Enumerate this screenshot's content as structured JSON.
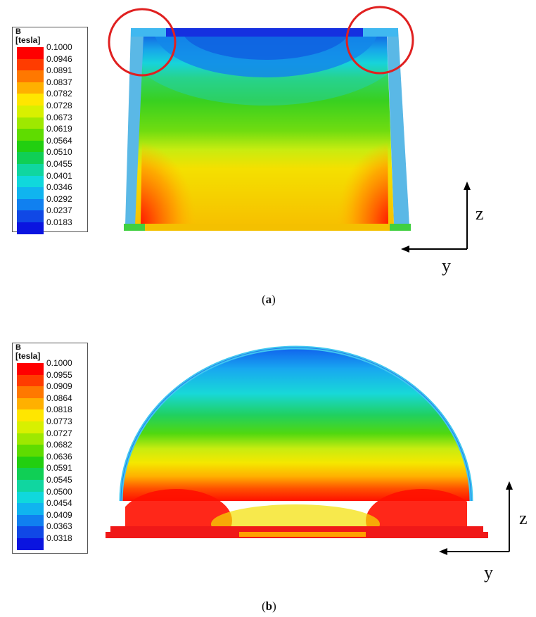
{
  "panel_a": {
    "legend": {
      "quantity": "B",
      "unit": "[tesla]",
      "ticks": [
        "0.1000",
        "0.0946",
        "0.0891",
        "0.0837",
        "0.0782",
        "0.0728",
        "0.0673",
        "0.0619",
        "0.0564",
        "0.0510",
        "0.0455",
        "0.0401",
        "0.0346",
        "0.0292",
        "0.0237",
        "0.0183"
      ],
      "colors": [
        "#ff0000",
        "#ff3c00",
        "#ff7800",
        "#ffb000",
        "#ffe600",
        "#d8f000",
        "#9ee800",
        "#5fdc00",
        "#22cf10",
        "#10cf55",
        "#10d6a0",
        "#10d8dc",
        "#10b4ef",
        "#1080f0",
        "#1048e6",
        "#0a14e0"
      ]
    },
    "axis": {
      "vertical": "z",
      "horizontal": "y"
    },
    "caption_letter": "a"
  },
  "panel_b": {
    "legend": {
      "quantity": "B",
      "unit": "[tesla]",
      "ticks": [
        "0.1000",
        "0.0955",
        "0.0909",
        "0.0864",
        "0.0818",
        "0.0773",
        "0.0727",
        "0.0682",
        "0.0636",
        "0.0591",
        "0.0545",
        "0.0500",
        "0.0454",
        "0.0409",
        "0.0363",
        "0.0318"
      ],
      "colors": [
        "#ff0000",
        "#ff3c00",
        "#ff7800",
        "#ffb000",
        "#ffe600",
        "#d8f000",
        "#9ee800",
        "#5fdc00",
        "#22cf10",
        "#10cf55",
        "#10d6a0",
        "#10d8dc",
        "#10b4ef",
        "#1080f0",
        "#1048e6",
        "#0a14e0"
      ]
    },
    "axis": {
      "vertical": "z",
      "horizontal": "y"
    },
    "caption_letter": "b"
  }
}
